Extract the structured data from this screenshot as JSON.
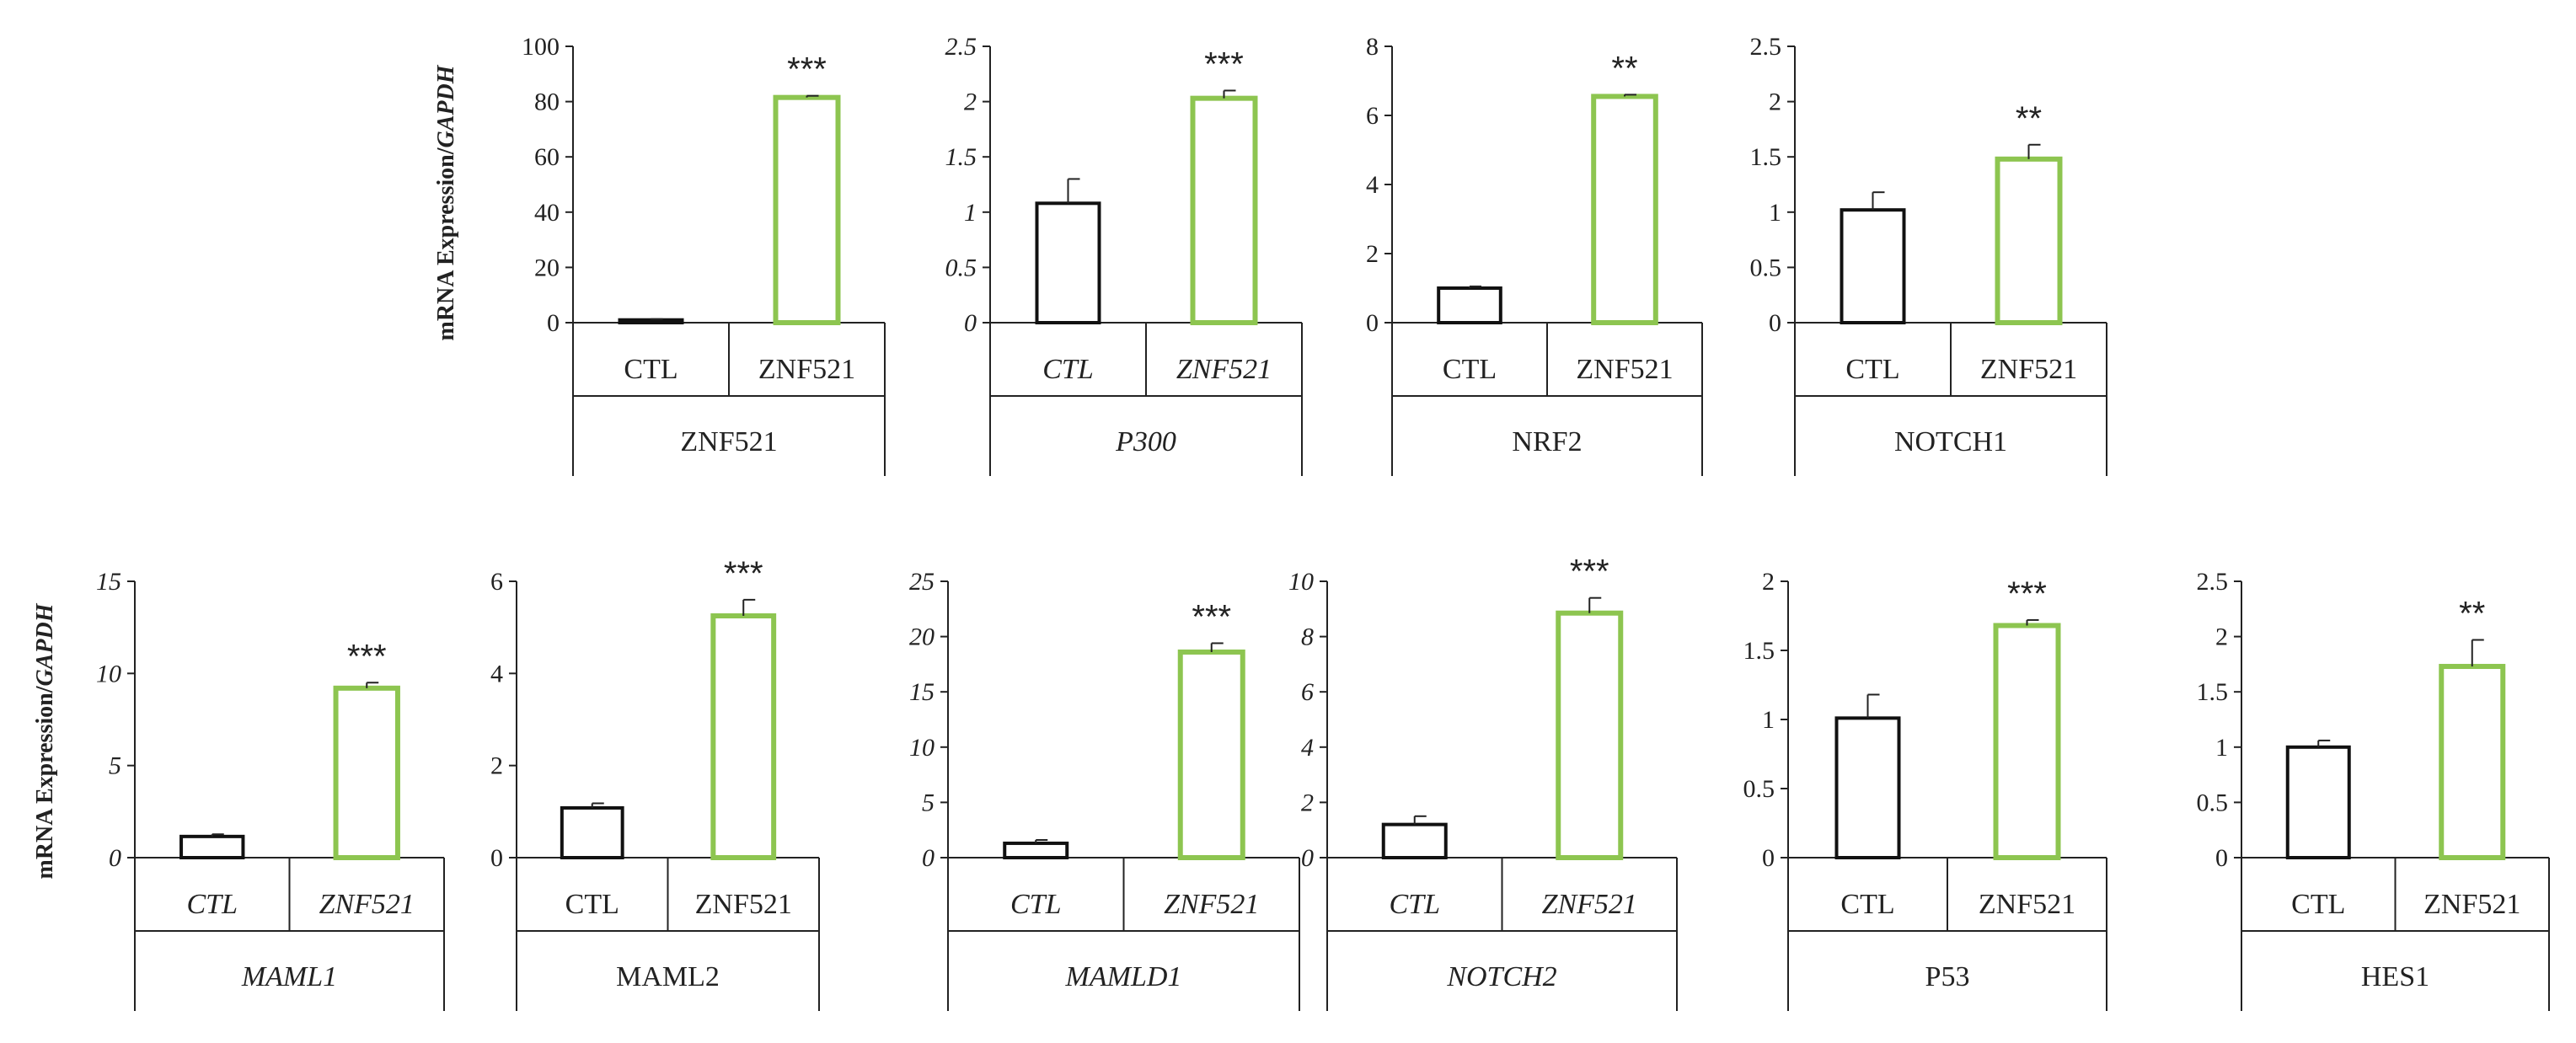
{
  "figure": {
    "ylabel_top": {
      "plain": "mRNA Expression/",
      "italic": "GAPDH"
    },
    "ylabel_bottom": {
      "plain": "mRNA Expression/",
      "italic": "GAPDH"
    }
  },
  "colors": {
    "ctl": "#111111",
    "znf": "#8dc550",
    "axis": "#222222",
    "text": "#222222"
  },
  "chart_data": [
    {
      "type": "bar",
      "title": "ZNF521",
      "title_italic": false,
      "categories": [
        "CTL",
        "ZNF521"
      ],
      "cat_italic": false,
      "values": [
        1.0,
        81.5
      ],
      "errors": [
        0.3,
        0.6
      ],
      "yticks": [
        "0",
        "20",
        "40",
        "60",
        "80",
        "100"
      ],
      "ytick_italic": false,
      "ylim": [
        0,
        100
      ],
      "significance": "***"
    },
    {
      "type": "bar",
      "title": "P300",
      "title_italic": true,
      "categories": [
        "CTL",
        "ZNF521"
      ],
      "cat_italic": true,
      "values": [
        1.08,
        2.03
      ],
      "errors": [
        0.22,
        0.07
      ],
      "yticks": [
        "0",
        "0.5",
        "1",
        "1.5",
        "2",
        "2.5"
      ],
      "ytick_italic": true,
      "ylim": [
        0,
        2.5
      ],
      "significance": "***"
    },
    {
      "type": "bar",
      "title": "NRF2",
      "title_italic": false,
      "categories": [
        "CTL",
        "ZNF521"
      ],
      "cat_italic": false,
      "values": [
        1.0,
        6.55
      ],
      "errors": [
        0.05,
        0.05
      ],
      "yticks": [
        "0",
        "2",
        "4",
        "6",
        "8"
      ],
      "ytick_italic": false,
      "ylim": [
        0,
        8
      ],
      "significance": "**"
    },
    {
      "type": "bar",
      "title": "NOTCH1",
      "title_italic": false,
      "categories": [
        "CTL",
        "ZNF521"
      ],
      "cat_italic": false,
      "values": [
        1.02,
        1.48
      ],
      "errors": [
        0.16,
        0.13
      ],
      "yticks": [
        "0",
        "0.5",
        "1",
        "1.5",
        "2",
        "2.5"
      ],
      "ytick_italic": false,
      "ylim": [
        0,
        2.5
      ],
      "significance": "**"
    },
    {
      "type": "bar",
      "title": "MAML1",
      "title_italic": true,
      "categories": [
        "CTL",
        "ZNF521"
      ],
      "cat_italic": true,
      "values": [
        1.15,
        9.2
      ],
      "errors": [
        0.12,
        0.3
      ],
      "yticks": [
        "0",
        "5",
        "10",
        "15"
      ],
      "ytick_italic": true,
      "ylim": [
        0,
        15
      ],
      "significance": "***"
    },
    {
      "type": "bar",
      "title": "MAML2",
      "title_italic": false,
      "categories": [
        "CTL",
        "ZNF521"
      ],
      "cat_italic": false,
      "values": [
        1.08,
        5.25
      ],
      "errors": [
        0.1,
        0.35
      ],
      "yticks": [
        "0",
        "2",
        "4",
        "6"
      ],
      "ytick_italic": false,
      "ylim": [
        0,
        6
      ],
      "significance": "***"
    },
    {
      "type": "bar",
      "title": "MAMLD1",
      "title_italic": true,
      "categories": [
        "CTL",
        "ZNF521"
      ],
      "cat_italic": true,
      "values": [
        1.3,
        18.6
      ],
      "errors": [
        0.3,
        0.8
      ],
      "yticks": [
        "0",
        "5",
        "10",
        "15",
        "20",
        "25"
      ],
      "ytick_italic": true,
      "ylim": [
        0,
        25
      ],
      "significance": "***"
    },
    {
      "type": "bar",
      "title": "NOTCH2",
      "title_italic": true,
      "categories": [
        "CTL",
        "ZNF521"
      ],
      "cat_italic": true,
      "values": [
        1.2,
        8.85
      ],
      "errors": [
        0.3,
        0.55
      ],
      "yticks": [
        "0",
        "2",
        "4",
        "6",
        "8",
        "10"
      ],
      "ytick_italic": true,
      "ylim": [
        0,
        10
      ],
      "significance": "***"
    },
    {
      "type": "bar",
      "title": "P53",
      "title_italic": false,
      "categories": [
        "CTL",
        "ZNF521"
      ],
      "cat_italic": false,
      "values": [
        1.01,
        1.68
      ],
      "errors": [
        0.17,
        0.04
      ],
      "yticks": [
        "0",
        "0.5",
        "1",
        "1.5",
        "2"
      ],
      "ytick_italic": false,
      "ylim": [
        0,
        2
      ],
      "significance": "***"
    },
    {
      "type": "bar",
      "title": "HES1",
      "title_italic": false,
      "categories": [
        "CTL",
        "ZNF521"
      ],
      "cat_italic": false,
      "values": [
        1.0,
        1.73
      ],
      "errors": [
        0.06,
        0.24
      ],
      "yticks": [
        "0",
        "0.5",
        "1",
        "1.5",
        "2",
        "2.5"
      ],
      "ytick_italic": false,
      "ylim": [
        0,
        2.5
      ],
      "significance": "**"
    }
  ]
}
